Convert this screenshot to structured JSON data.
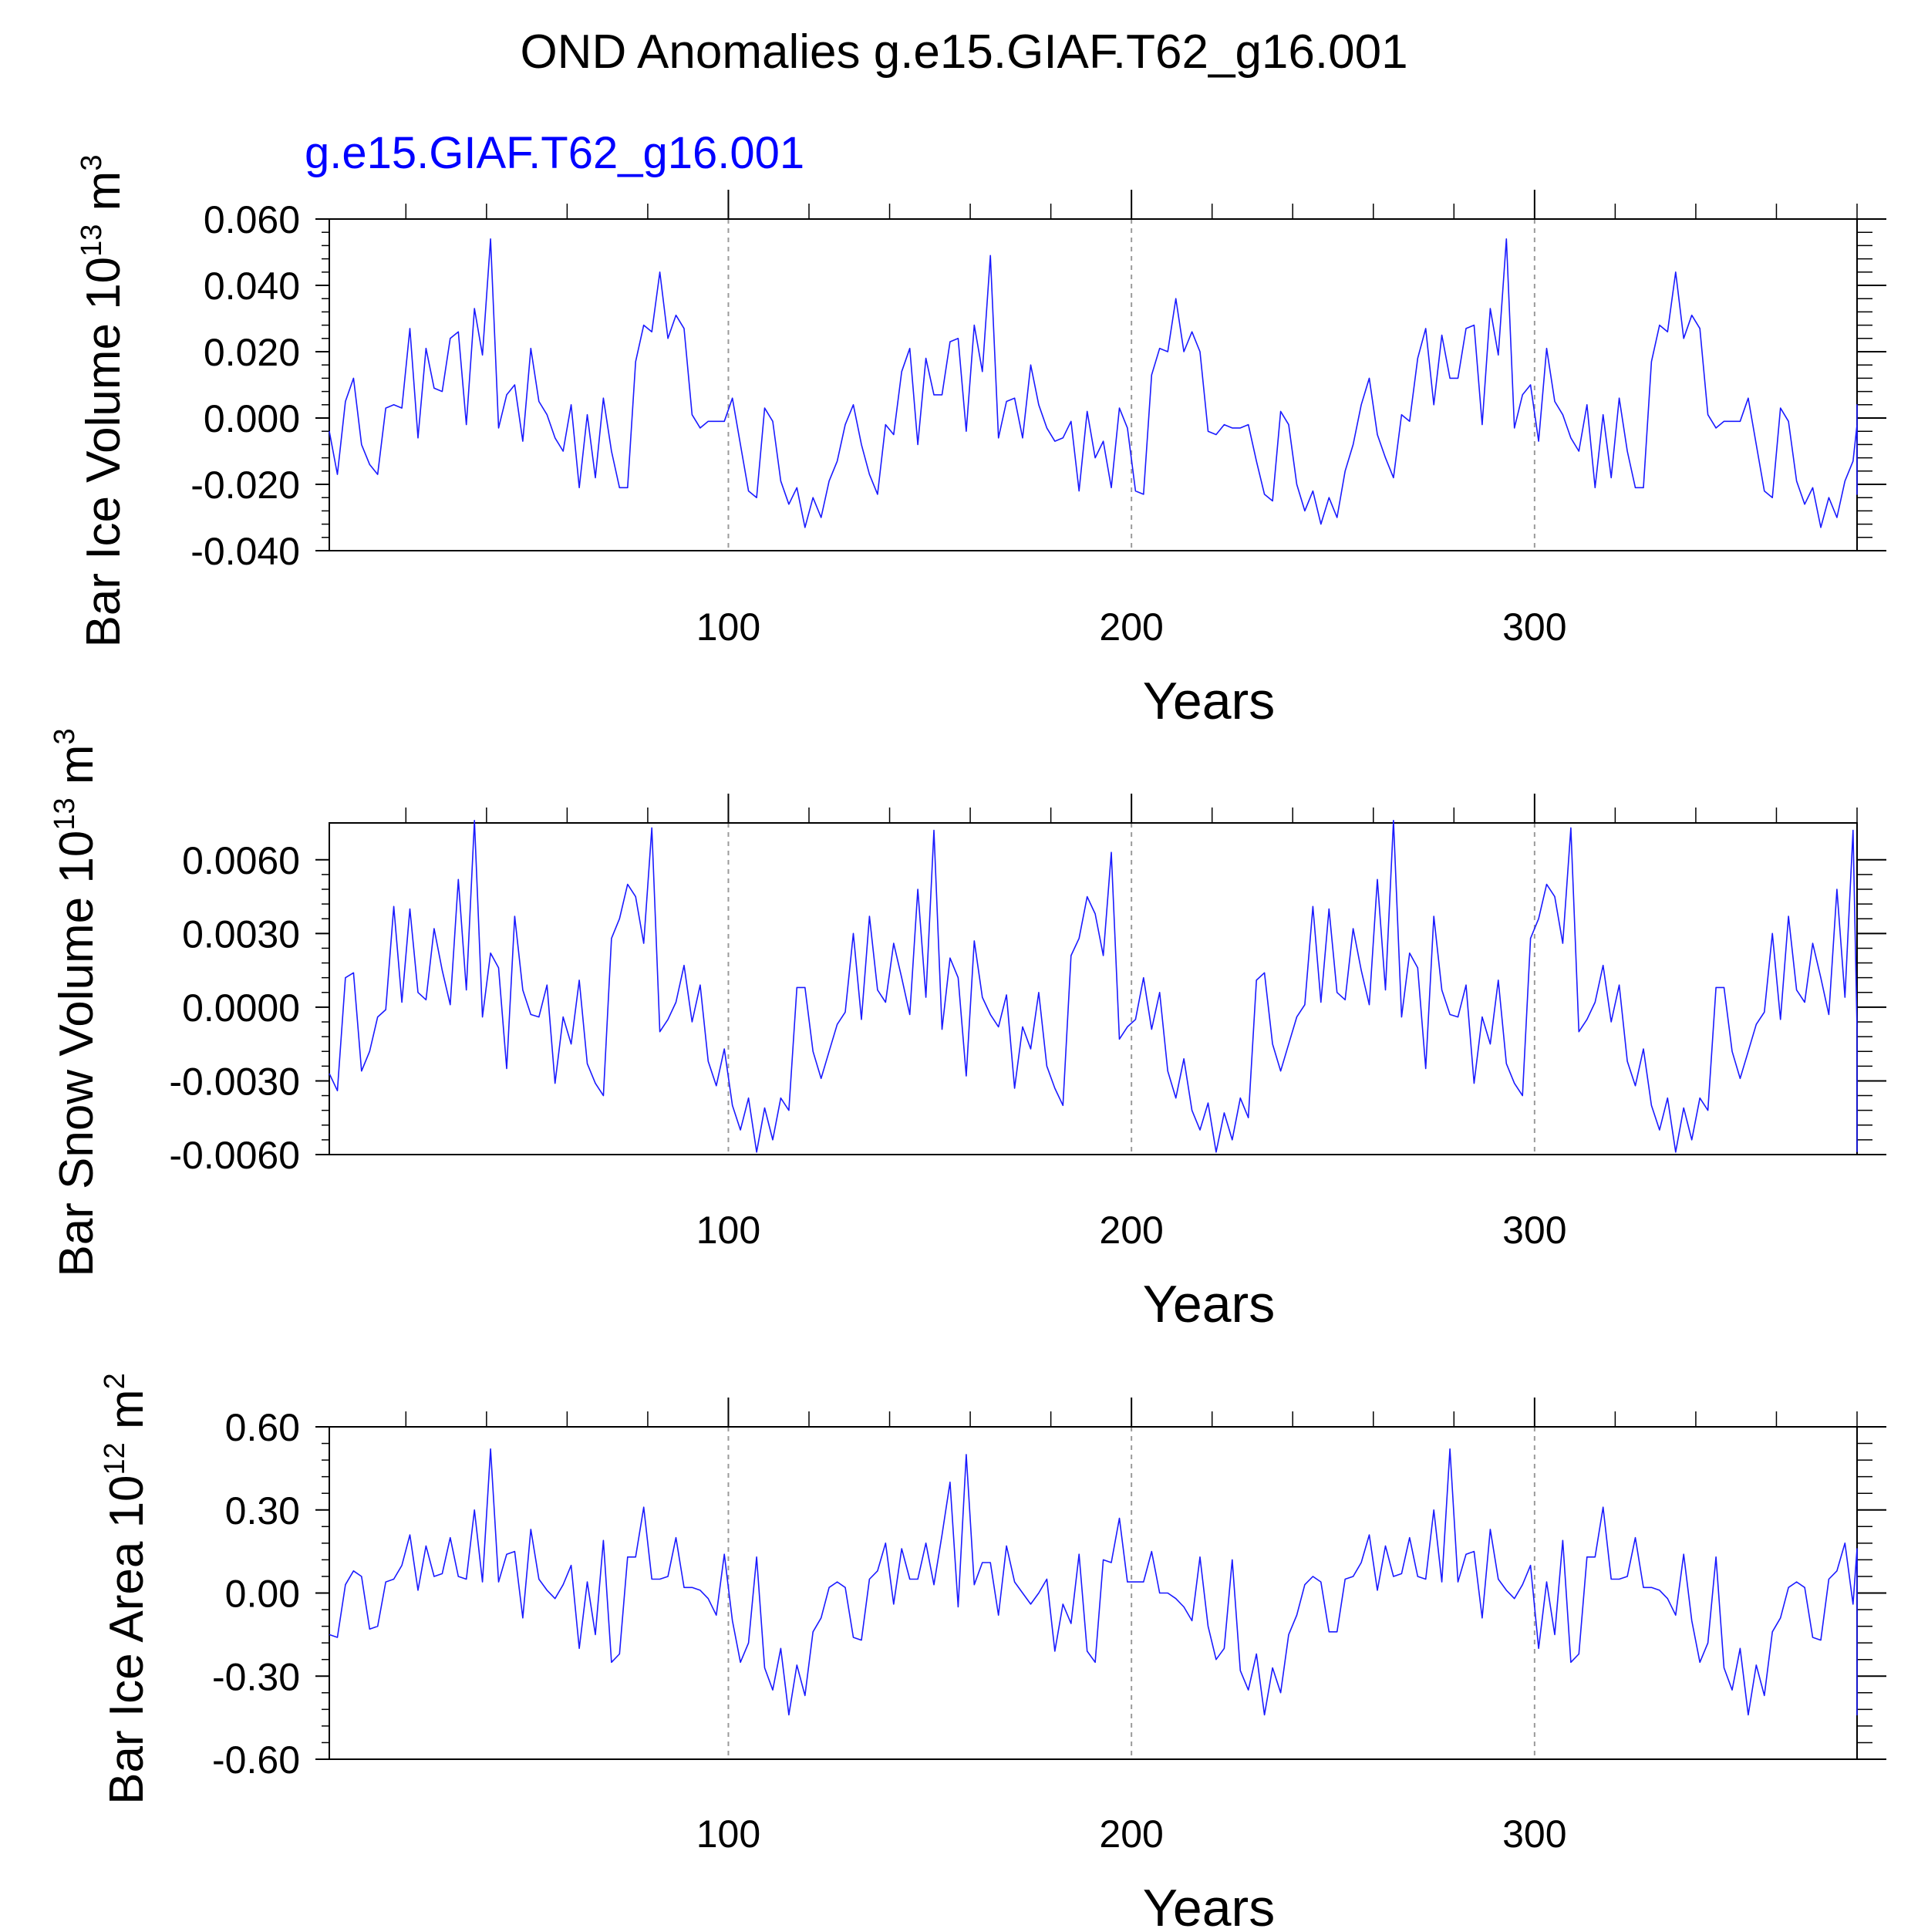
{
  "figure": {
    "title": "OND Anomalies g.e15.GIAF.T62_g16.001",
    "subtitle": "g.e15.GIAF.T62_g16.001",
    "line_color": "#1a1aff",
    "subtitle_color": "#0000ff",
    "axis_color": "#000000",
    "grid_color": "#9a9a9a"
  },
  "chart_data": [
    {
      "type": "line",
      "name": "bar-ice-volume",
      "title": "",
      "xlabel": "Years",
      "ylabel_main": "Bar Ice Volume 10",
      "ylabel_exp": "13",
      "ylabel_unit": " m",
      "ylabel_unit_exp": "3",
      "xlim": [
        1,
        380
      ],
      "ylim": [
        -0.04,
        0.06
      ],
      "xticks": [
        100,
        200,
        300
      ],
      "xtick_labels": [
        "100",
        "200",
        "300"
      ],
      "yticks": [
        0.06,
        0.04,
        0.02,
        0.0,
        -0.02,
        -0.04
      ],
      "ytick_labels": [
        "0.060",
        "0.040",
        "0.020",
        "0.000",
        "-0.020",
        "-0.040"
      ],
      "grid_x": [
        100,
        200,
        300
      ],
      "series": [
        {
          "name": "g.e15.GIAF.T62_g16.001",
          "x_start": 1,
          "x_step": 2,
          "values": [
            -0.004,
            -0.017,
            0.005,
            0.012,
            -0.008,
            -0.014,
            -0.017,
            0.003,
            0.004,
            0.003,
            0.027,
            -0.006,
            0.021,
            0.009,
            0.008,
            0.024,
            0.026,
            -0.002,
            0.033,
            0.019,
            0.054,
            -0.003,
            0.007,
            0.01,
            -0.007,
            0.021,
            0.005,
            0.001,
            -0.006,
            -0.01,
            0.004,
            -0.021,
            0.001,
            -0.018,
            0.006,
            -0.01,
            -0.021,
            -0.021,
            0.017,
            0.028,
            0.026,
            0.044,
            0.024,
            0.031,
            0.027,
            0.001,
            -0.003,
            -0.001,
            -0.001,
            -0.001,
            0.006,
            -0.008,
            -0.022,
            -0.024,
            0.003,
            -0.001,
            -0.019,
            -0.026,
            -0.021,
            -0.033,
            -0.024,
            -0.03,
            -0.019,
            -0.013,
            -0.002,
            0.004,
            -0.008,
            -0.017,
            -0.023,
            -0.002,
            -0.005,
            0.014,
            0.021,
            -0.008,
            0.018,
            0.007,
            0.007,
            0.023,
            0.024,
            -0.004,
            0.028,
            0.014,
            0.049,
            -0.006,
            0.005,
            0.006,
            -0.006,
            0.016,
            0.004,
            -0.003,
            -0.007,
            -0.006,
            -0.001,
            -0.022,
            0.002,
            -0.012,
            -0.007,
            -0.021,
            0.003,
            -0.003,
            -0.022,
            -0.023,
            0.013,
            0.021,
            0.02,
            0.036,
            0.02,
            0.026,
            0.02,
            -0.004,
            -0.005,
            -0.002,
            -0.003,
            -0.003,
            -0.002,
            -0.013,
            -0.023,
            -0.025,
            0.002,
            -0.002,
            -0.02,
            -0.028,
            -0.022,
            -0.032,
            -0.024,
            -0.03,
            -0.016,
            -0.008,
            0.004,
            0.012,
            -0.005,
            -0.012,
            -0.018,
            0.001,
            -0.001,
            0.018,
            0.027,
            0.004,
            0.025,
            0.012,
            0.012,
            0.027,
            0.028,
            -0.002,
            0.033,
            0.019,
            0.054,
            -0.003,
            0.007,
            0.01,
            -0.007,
            0.021,
            0.005,
            0.001,
            -0.006,
            -0.01,
            0.004,
            -0.021,
            0.001,
            -0.018,
            0.006,
            -0.01,
            -0.021,
            -0.021,
            0.017,
            0.028,
            0.026,
            0.044,
            0.024,
            0.031,
            0.027,
            0.001,
            -0.003,
            -0.001,
            -0.001,
            -0.001,
            0.006,
            -0.008,
            -0.022,
            -0.024,
            0.003,
            -0.001,
            -0.019,
            -0.026,
            -0.021,
            -0.033,
            -0.024,
            -0.03,
            -0.019,
            -0.013,
            -0.002,
            0.004,
            -0.008,
            -0.017,
            -0.023,
            -0.002
          ]
        }
      ]
    },
    {
      "type": "line",
      "name": "bar-snow-volume",
      "title": "",
      "xlabel": "Years",
      "ylabel_main": "Bar Snow Volume 10",
      "ylabel_exp": "13",
      "ylabel_unit": " m",
      "ylabel_unit_exp": "3",
      "xlim": [
        1,
        380
      ],
      "ylim": [
        -0.006,
        0.0075
      ],
      "xticks": [
        100,
        200,
        300
      ],
      "xtick_labels": [
        "100",
        "200",
        "300"
      ],
      "yticks": [
        0.006,
        0.003,
        0.0,
        -0.003,
        -0.006
      ],
      "ytick_labels": [
        "0.0060",
        "0.0030",
        "0.0000",
        "-0.0030",
        "-0.0060"
      ],
      "grid_x": [
        100,
        200,
        300
      ],
      "series": [
        {
          "name": "g.e15.GIAF.T62_g16.001",
          "x_start": 1,
          "x_step": 2,
          "values": [
            -0.0027,
            -0.0034,
            0.0012,
            0.0014,
            -0.0026,
            -0.0018,
            -0.0004,
            -0.0001,
            0.0041,
            0.0002,
            0.004,
            0.0006,
            0.0003,
            0.0032,
            0.0015,
            0.0001,
            0.0052,
            0.0007,
            0.0076,
            -0.0004,
            0.0022,
            0.0016,
            -0.0025,
            0.0037,
            0.0007,
            -0.0003,
            -0.0004,
            0.0009,
            -0.0031,
            -0.0004,
            -0.0015,
            0.0011,
            -0.0023,
            -0.0031,
            -0.0036,
            0.0028,
            0.0036,
            0.005,
            0.0045,
            0.0026,
            0.0073,
            -0.001,
            -0.0005,
            0.0002,
            0.0017,
            -0.0006,
            0.0009,
            -0.0022,
            -0.0032,
            -0.0017,
            -0.004,
            -0.005,
            -0.0037,
            -0.0059,
            -0.0041,
            -0.0054,
            -0.0037,
            -0.0042,
            0.0008,
            0.0008,
            -0.0018,
            -0.0029,
            -0.0018,
            -0.0007,
            -0.0002,
            0.003,
            -0.0005,
            0.0037,
            0.0007,
            0.0002,
            0.0026,
            0.0012,
            -0.0003,
            0.0048,
            0.0004,
            0.0072,
            -0.0009,
            0.002,
            0.0012,
            -0.0028,
            0.0027,
            0.0004,
            -0.0003,
            -0.0008,
            0.0005,
            -0.0033,
            -0.0008,
            -0.0017,
            0.0006,
            -0.0024,
            -0.0033,
            -0.004,
            0.0021,
            0.0028,
            0.0045,
            0.0038,
            0.0021,
            0.0063,
            -0.0013,
            -0.0008,
            -0.0005,
            0.0012,
            -0.0009,
            0.0006,
            -0.0026,
            -0.0037,
            -0.0021,
            -0.0042,
            -0.005,
            -0.0039,
            -0.0059,
            -0.0043,
            -0.0054,
            -0.0037,
            -0.0045,
            0.0011,
            0.0014,
            -0.0015,
            -0.0026,
            -0.0015,
            -0.0004,
            0.0001,
            0.0041,
            0.0002,
            0.004,
            0.0006,
            0.0003,
            0.0032,
            0.0015,
            0.0001,
            0.0052,
            0.0007,
            0.0076,
            -0.0004,
            0.0022,
            0.0016,
            -0.0025,
            0.0037,
            0.0007,
            -0.0003,
            -0.0004,
            0.0009,
            -0.0031,
            -0.0004,
            -0.0015,
            0.0011,
            -0.0023,
            -0.0031,
            -0.0036,
            0.0028,
            0.0036,
            0.005,
            0.0045,
            0.0026,
            0.0073,
            -0.001,
            -0.0005,
            0.0002,
            0.0017,
            -0.0006,
            0.0009,
            -0.0022,
            -0.0032,
            -0.0017,
            -0.004,
            -0.005,
            -0.0037,
            -0.0059,
            -0.0041,
            -0.0054,
            -0.0037,
            -0.0042,
            0.0008,
            0.0008,
            -0.0018,
            -0.0029,
            -0.0018,
            -0.0007,
            -0.0002,
            0.003,
            -0.0005,
            0.0037,
            0.0007,
            0.0002,
            0.0026,
            0.0012,
            -0.0003,
            0.0048,
            0.0004,
            0.0072,
            -0.0009,
            -0.004,
            -0.0059
          ]
        }
      ]
    },
    {
      "type": "line",
      "name": "bar-ice-area",
      "title": "",
      "xlabel": "Years",
      "ylabel_main": "Bar Ice Area 10",
      "ylabel_exp": "12",
      "ylabel_unit": " m",
      "ylabel_unit_exp": "2",
      "xlim": [
        1,
        380
      ],
      "ylim": [
        -0.6,
        0.6
      ],
      "xticks": [
        100,
        200,
        300
      ],
      "xtick_labels": [
        "100",
        "200",
        "300"
      ],
      "yticks": [
        0.6,
        0.3,
        0.0,
        -0.3,
        -0.6
      ],
      "ytick_labels": [
        "0.60",
        "0.30",
        "0.00",
        "-0.30",
        "-0.60"
      ],
      "grid_x": [
        100,
        200,
        300
      ],
      "series": [
        {
          "name": "g.e15.GIAF.T62_g16.001",
          "x_start": 1,
          "x_step": 2,
          "values": [
            -0.15,
            -0.16,
            0.03,
            0.08,
            0.06,
            -0.13,
            -0.12,
            0.04,
            0.05,
            0.1,
            0.21,
            0.01,
            0.17,
            0.06,
            0.07,
            0.2,
            0.06,
            0.05,
            0.3,
            0.04,
            0.52,
            0.04,
            0.14,
            0.15,
            -0.09,
            0.23,
            0.05,
            0.01,
            -0.02,
            0.03,
            0.1,
            -0.2,
            0.04,
            -0.15,
            0.19,
            -0.25,
            -0.22,
            0.13,
            0.13,
            0.31,
            0.05,
            0.05,
            0.06,
            0.2,
            0.02,
            0.02,
            0.01,
            -0.02,
            -0.08,
            0.14,
            -0.1,
            -0.25,
            -0.18,
            0.13,
            -0.27,
            -0.35,
            -0.2,
            -0.44,
            -0.26,
            -0.37,
            -0.14,
            -0.09,
            0.02,
            0.04,
            0.02,
            -0.16,
            -0.17,
            0.05,
            0.08,
            0.18,
            -0.04,
            0.16,
            0.05,
            0.05,
            0.18,
            0.03,
            0.21,
            0.4,
            -0.05,
            0.5,
            0.03,
            0.11,
            0.11,
            -0.08,
            0.17,
            0.04,
            0.0,
            -0.04,
            0.0,
            0.05,
            -0.21,
            -0.04,
            -0.11,
            0.14,
            -0.21,
            -0.25,
            0.12,
            0.11,
            0.27,
            0.04,
            0.04,
            0.04,
            0.15,
            0.0,
            0.0,
            -0.02,
            -0.05,
            -0.1,
            0.13,
            -0.12,
            -0.24,
            -0.2,
            0.12,
            -0.28,
            -0.35,
            -0.22,
            -0.44,
            -0.27,
            -0.36,
            -0.15,
            -0.08,
            0.03,
            0.06,
            0.04,
            -0.14,
            -0.14,
            0.05,
            0.06,
            0.11,
            0.21,
            0.01,
            0.17,
            0.06,
            0.07,
            0.2,
            0.06,
            0.05,
            0.3,
            0.04,
            0.52,
            0.04,
            0.14,
            0.15,
            -0.09,
            0.23,
            0.05,
            0.01,
            -0.02,
            0.03,
            0.1,
            -0.2,
            0.04,
            -0.15,
            0.19,
            -0.25,
            -0.22,
            0.13,
            0.13,
            0.31,
            0.05,
            0.05,
            0.06,
            0.2,
            0.02,
            0.02,
            0.01,
            -0.02,
            -0.08,
            0.14,
            -0.1,
            -0.25,
            -0.18,
            0.13,
            -0.27,
            -0.35,
            -0.2,
            -0.44,
            -0.26,
            -0.37,
            -0.14,
            -0.09,
            0.02,
            0.04,
            0.02,
            -0.16,
            -0.17,
            0.05,
            0.08,
            0.18,
            -0.04,
            0.16,
            -0.3,
            -0.44,
            -0.36
          ]
        }
      ]
    }
  ]
}
